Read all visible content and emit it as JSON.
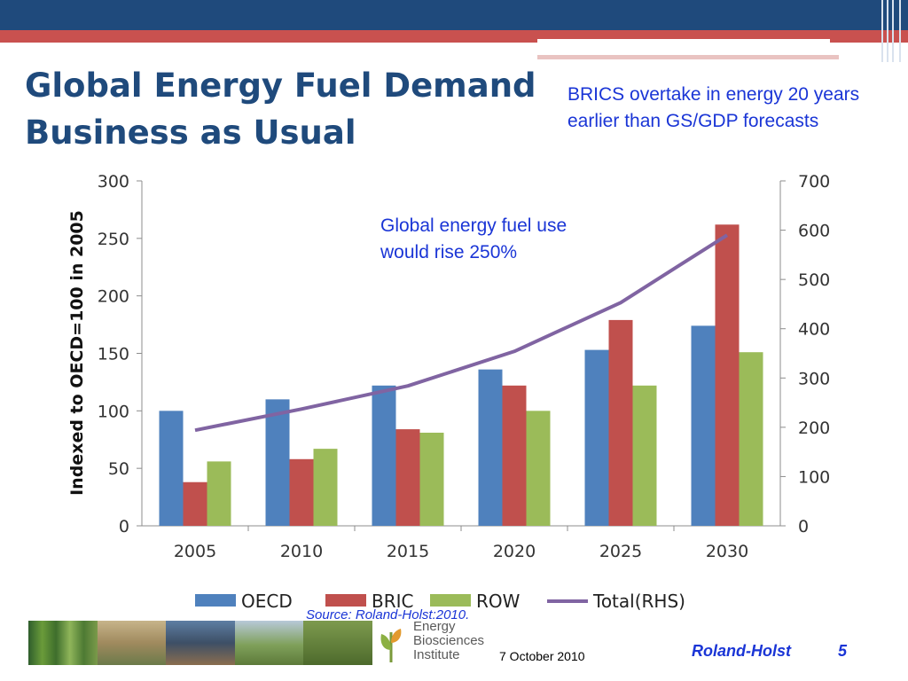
{
  "slide": {
    "title_line1": "Global Energy Fuel Demand",
    "title_line2": "Business as Usual",
    "note_top": "BRICS overtake in energy 20 years earlier than GS/GDP forecasts",
    "note_chart": "Global energy fuel use would rise 250%",
    "source": "Source: Roland-Holst:2010.",
    "date": "7 October 2010",
    "author": "Roland-Holst",
    "page_number": "5",
    "logo_text": [
      "Energy",
      "Biosciences",
      "Institute"
    ]
  },
  "colors": {
    "header_blue": "#1f4a7c",
    "header_red": "#c9514f",
    "text_blue": "#1a35d6",
    "oecd": "#4f81bd",
    "bric": "#c0504d",
    "row": "#9bbb59",
    "total": "#8064a2"
  },
  "chart_data": {
    "type": "bar",
    "categories": [
      "2005",
      "2010",
      "2015",
      "2020",
      "2025",
      "2030"
    ],
    "series": [
      {
        "name": "OECD",
        "values": [
          100,
          110,
          122,
          136,
          153,
          174
        ]
      },
      {
        "name": "BRIC",
        "values": [
          38,
          58,
          84,
          122,
          179,
          262
        ]
      },
      {
        "name": "ROW",
        "values": [
          56,
          67,
          81,
          100,
          122,
          151
        ]
      }
    ],
    "line_series": {
      "name": "Total(RHS)",
      "axis": "right",
      "values": [
        194,
        237,
        284,
        354,
        453,
        590
      ]
    },
    "ylabel": "Indexed to OECD=100 in 2005",
    "ylim": [
      0,
      300
    ],
    "yticks": [
      "0",
      "50",
      "100",
      "150",
      "200",
      "250",
      "300"
    ],
    "y2lim": [
      0,
      700
    ],
    "y2ticks": [
      "0",
      "100",
      "200",
      "300",
      "400",
      "500",
      "600",
      "700"
    ],
    "grid": false,
    "legend_position": "bottom"
  }
}
